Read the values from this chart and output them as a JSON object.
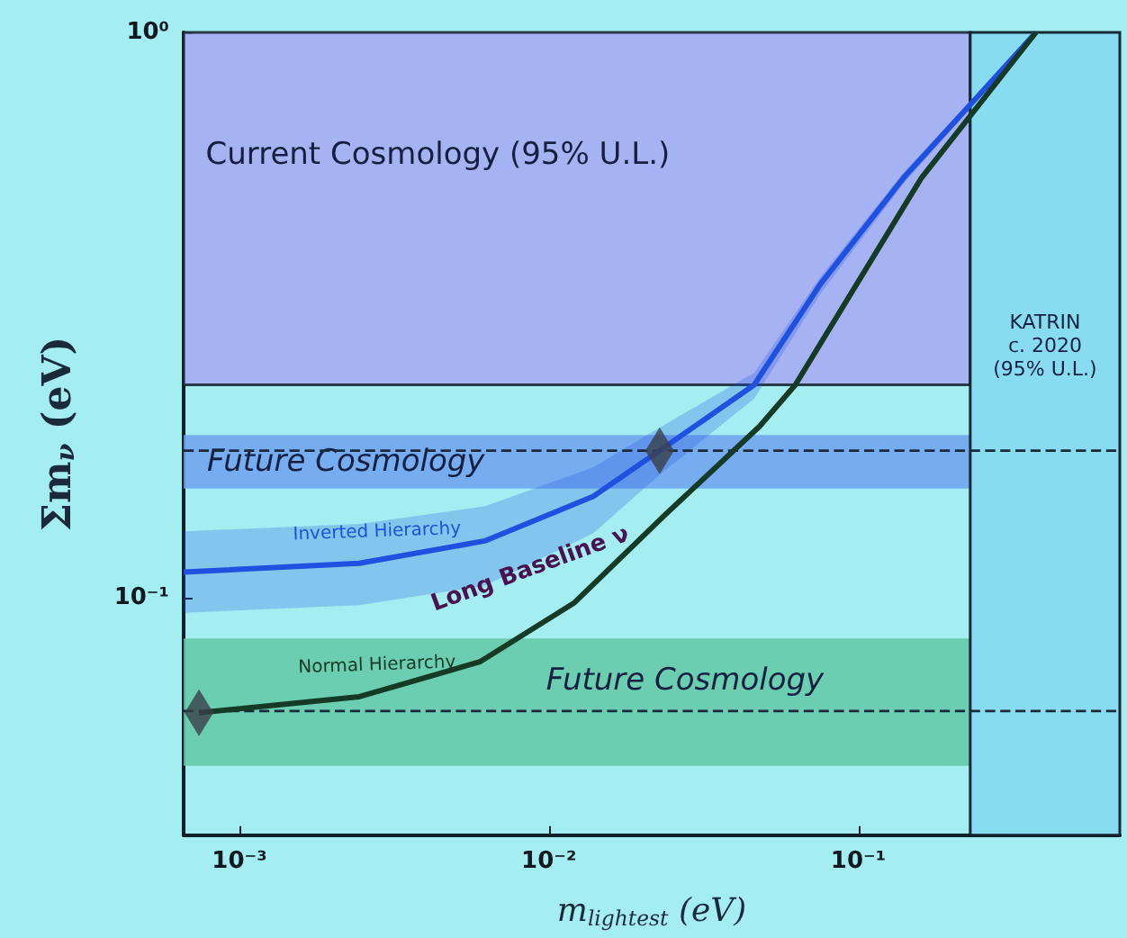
{
  "chart_data": {
    "type": "line",
    "xlabel": "m$_{lightest}$ (eV)",
    "ylabel": "Σm$_{ν}$ (eV)",
    "log": "xy",
    "xlim": [
      0.00066,
      0.7
    ],
    "ylim": [
      0.038,
      1
    ],
    "xticks": [
      {
        "value": 0.001,
        "label": "10⁻³"
      },
      {
        "value": 0.01,
        "label": "10⁻²"
      },
      {
        "value": 0.1,
        "label": "10⁻¹"
      }
    ],
    "yticks": [
      {
        "value": 0.1,
        "label": "10⁻¹"
      },
      {
        "value": 1,
        "label": "10⁰"
      }
    ],
    "grid": false,
    "legend": false,
    "marker": "none",
    "series": [
      {
        "name": "Inverted Hierarchy",
        "color": "#2050e0",
        "x": [
          0.00066,
          0.00244,
          0.0062,
          0.0139,
          0.0228,
          0.0461,
          0.0755,
          0.14,
          0.229,
          0.375
        ],
        "values": [
          0.111,
          0.115,
          0.126,
          0.151,
          0.182,
          0.238,
          0.359,
          0.553,
          0.743,
          1.0
        ],
        "lower": [
          0.094,
          0.097,
          0.105,
          0.13,
          0.165,
          0.225,
          0.345,
          0.54,
          0.73,
          0.98
        ],
        "upper": [
          0.131,
          0.135,
          0.145,
          0.17,
          0.2,
          0.25,
          0.37,
          0.565,
          0.755,
          1.0
        ]
      },
      {
        "name": "Normal Hierarchy",
        "color": "#153a25",
        "x": [
          0.00074,
          0.00244,
          0.00598,
          0.0121,
          0.0237,
          0.048,
          0.0626,
          0.16,
          0.375
        ],
        "values": [
          0.0626,
          0.0668,
          0.077,
          0.098,
          0.14,
          0.201,
          0.238,
          0.553,
          1.0
        ]
      },
      {
        "type": "scatter",
        "marker": "diamond",
        "color": "#3a4048",
        "x": [
          0.00074,
          0.0228
        ],
        "values": [
          0.0626,
          0.182
        ]
      }
    ],
    "bands": [
      {
        "axis": "y",
        "from": 0.238,
        "to": 1,
        "label": "Current Cosmology (95% U.L.)",
        "color": "#a6a8f2"
      },
      {
        "axis": "y",
        "from": 0.156,
        "to": 0.194,
        "label": "Future Cosmology",
        "color": "#6fa0f0"
      },
      {
        "axis": "y",
        "from": 0.0504,
        "to": 0.0847,
        "label": "Future Cosmology",
        "color": "#62c8a6"
      },
      {
        "axis": "x",
        "from": 0.23,
        "to": 0.7,
        "label": "KATRIN\nc. 2020\n(95% U.L.)",
        "color": "#86daf0"
      }
    ],
    "ref_lines": [
      {
        "axis": "y",
        "value": 0.182,
        "line_style": "dashed",
        "color": "#1a2a3a"
      },
      {
        "axis": "y",
        "value": 0.063,
        "line_style": "dashed",
        "color": "#1a2a3a"
      }
    ],
    "annotations": [
      "Long Baseline ν"
    ]
  }
}
